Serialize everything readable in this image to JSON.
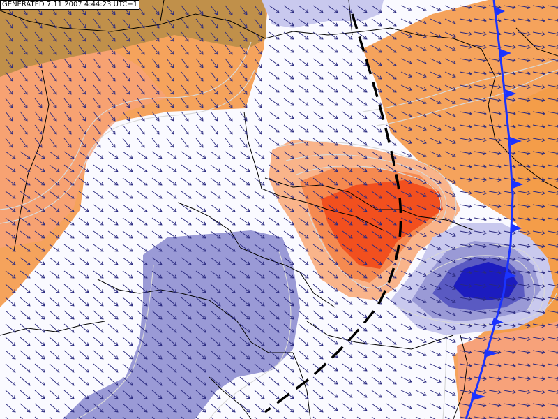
{
  "stamp": {
    "text": "GENERATED 7.11.2007 4:44:23 UTC+1"
  },
  "colors": {
    "background": "#fafaff",
    "warm_dark": "#c0904a",
    "warm_orange": "#f5a35c",
    "warm_salmon": "#f7a27a",
    "warm_peach": "#f9b48a",
    "warm_red": "#f2501e",
    "cool_light": "#c9c9ee",
    "cool_mid": "#9a9ad6",
    "cool_deep": "#5a5ac2",
    "cool_core": "#1c1cbf",
    "cold_front": "#1a33ff",
    "trough_line": "#000000",
    "wind_arrow": "#2a2a80",
    "border": "#000000",
    "isoline": "#d8d8d8"
  },
  "icons": {
    "wind": "arrow-icon",
    "front": "cold-front-triangle-icon"
  }
}
